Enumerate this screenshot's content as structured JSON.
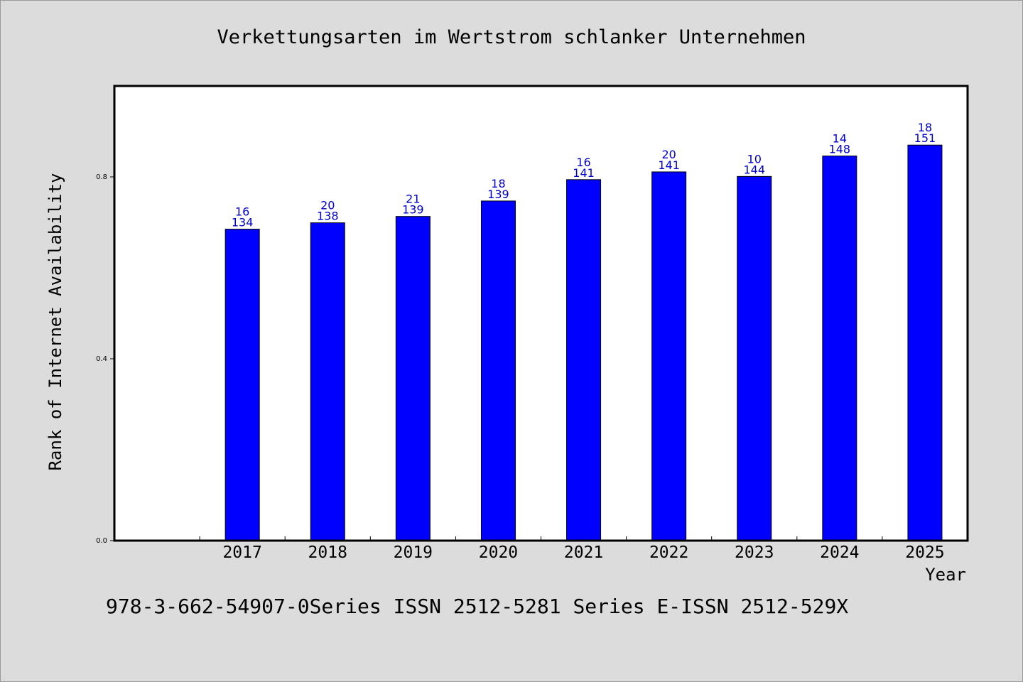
{
  "chart_data": {
    "type": "bar",
    "title": "Verkettungsarten im Wertstrom schlanker Unternehmen",
    "xlabel": "Year",
    "ylabel": "Rank of Internet Availability",
    "categories": [
      "2017",
      "2018",
      "2019",
      "2020",
      "2021",
      "2022",
      "2023",
      "2024",
      "2025"
    ],
    "series": [
      {
        "values": [
          0.685,
          0.699,
          0.713,
          0.747,
          0.794,
          0.811,
          0.801,
          0.846,
          0.87
        ],
        "labels_top": [
          "16",
          "20",
          "21",
          "18",
          "16",
          "20",
          "10",
          "14",
          "18"
        ],
        "labels_bottom": [
          "134",
          "138",
          "139",
          "139",
          "141",
          "141",
          "144",
          "148",
          "151"
        ]
      }
    ],
    "ylim": [
      0,
      1.0
    ],
    "yticks": [
      {
        "value": 0.0,
        "label": "0.0"
      },
      {
        "value": 0.4,
        "label": "0.4"
      },
      {
        "value": 0.8,
        "label": "0.8"
      }
    ],
    "grid": false,
    "bar_color": "#0000ff",
    "label_color": "#0000cc",
    "plot_background": "#ffffff",
    "page_background": "#dcdcdc"
  },
  "footer": {
    "text": "978-3-662-54907-0Series ISSN 2512-5281 Series E-ISSN 2512-529X"
  }
}
